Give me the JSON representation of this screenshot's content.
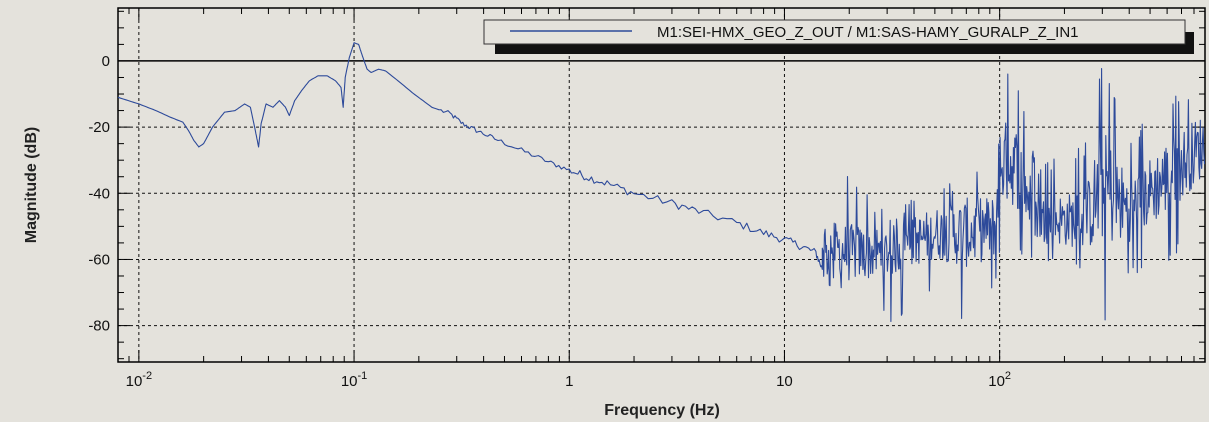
{
  "chart_data": {
    "type": "line",
    "xlabel": "Frequency (Hz)",
    "ylabel": "Magnitude (dB)",
    "x_scale": "log",
    "xlim": [
      0.008,
      900
    ],
    "ylim": [
      -91,
      16
    ],
    "grid": true,
    "legend_position": "top-right",
    "x_ticks": [
      {
        "value": 0.01,
        "base": "10",
        "exp": "-2"
      },
      {
        "value": 0.1,
        "base": "10",
        "exp": "-1"
      },
      {
        "value": 1,
        "base": "1",
        "exp": ""
      },
      {
        "value": 10,
        "base": "10",
        "exp": ""
      },
      {
        "value": 100,
        "base": "10",
        "exp": "2"
      }
    ],
    "y_ticks": [
      0,
      -20,
      -40,
      -60,
      -80
    ],
    "series": [
      {
        "name": "M1:SEI-HMX_GEO_Z_OUT / M1:SAS-HAMY_GURALP_Z_IN1",
        "color": "#2d4a9a",
        "points": [
          [
            0.008,
            -11
          ],
          [
            0.01,
            -13
          ],
          [
            0.012,
            -15
          ],
          [
            0.014,
            -17
          ],
          [
            0.016,
            -18.5
          ],
          [
            0.017,
            -21
          ],
          [
            0.018,
            -24
          ],
          [
            0.019,
            -26
          ],
          [
            0.02,
            -25
          ],
          [
            0.022,
            -20
          ],
          [
            0.025,
            -15.5
          ],
          [
            0.028,
            -15
          ],
          [
            0.031,
            -13
          ],
          [
            0.033,
            -14
          ],
          [
            0.035,
            -22
          ],
          [
            0.036,
            -26
          ],
          [
            0.037,
            -19
          ],
          [
            0.039,
            -13
          ],
          [
            0.042,
            -14
          ],
          [
            0.045,
            -12
          ],
          [
            0.048,
            -14
          ],
          [
            0.05,
            -16.5
          ],
          [
            0.053,
            -12
          ],
          [
            0.057,
            -9
          ],
          [
            0.062,
            -6
          ],
          [
            0.068,
            -4.5
          ],
          [
            0.075,
            -4.5
          ],
          [
            0.082,
            -6
          ],
          [
            0.087,
            -8
          ],
          [
            0.089,
            -14
          ],
          [
            0.091,
            -5
          ],
          [
            0.095,
            1
          ],
          [
            0.1,
            5.5
          ],
          [
            0.105,
            5
          ],
          [
            0.11,
            1
          ],
          [
            0.115,
            -2.5
          ],
          [
            0.12,
            -3.5
          ],
          [
            0.13,
            -2.5
          ],
          [
            0.14,
            -3
          ],
          [
            0.16,
            -6
          ],
          [
            0.19,
            -10
          ],
          [
            0.23,
            -14
          ],
          [
            0.28,
            -16
          ],
          [
            0.32,
            -19
          ],
          [
            0.37,
            -21
          ],
          [
            0.45,
            -23.5
          ],
          [
            0.6,
            -27
          ],
          [
            0.8,
            -30.5
          ],
          [
            1,
            -33
          ],
          [
            1.2,
            -35
          ],
          [
            1.5,
            -37
          ],
          [
            2,
            -40
          ],
          [
            3,
            -43
          ],
          [
            4,
            -45.5
          ],
          [
            6,
            -49
          ],
          [
            8,
            -52
          ],
          [
            10,
            -54
          ],
          [
            12,
            -56
          ],
          [
            14,
            -58
          ],
          [
            15,
            -63
          ]
        ],
        "noise_region": {
          "x_from": 15,
          "x_to": 900,
          "envelope": [
            {
              "x": 15,
              "center": -55,
              "low": -67,
              "high": -38
            },
            {
              "x": 20,
              "center": -58,
              "low": -72,
              "high": -33
            },
            {
              "x": 30,
              "center": -58,
              "low": -80,
              "high": -46
            },
            {
              "x": 50,
              "center": -52,
              "low": -72,
              "high": -38
            },
            {
              "x": 70,
              "center": -52,
              "low": -82,
              "high": -35
            },
            {
              "x": 95,
              "center": -50,
              "low": -70,
              "high": -28
            },
            {
              "x": 100,
              "center": -30,
              "low": -60,
              "high": -2
            },
            {
              "x": 120,
              "center": -32,
              "low": -60,
              "high": -5
            },
            {
              "x": 150,
              "center": -48,
              "low": -62,
              "high": -32
            },
            {
              "x": 250,
              "center": -48,
              "low": -65,
              "high": -25
            },
            {
              "x": 300,
              "center": -38,
              "low": -80,
              "high": 2
            },
            {
              "x": 400,
              "center": -45,
              "low": -65,
              "high": -22
            },
            {
              "x": 600,
              "center": -35,
              "low": -62,
              "high": -12
            },
            {
              "x": 900,
              "center": -25,
              "low": -48,
              "high": -5
            }
          ]
        }
      }
    ]
  }
}
